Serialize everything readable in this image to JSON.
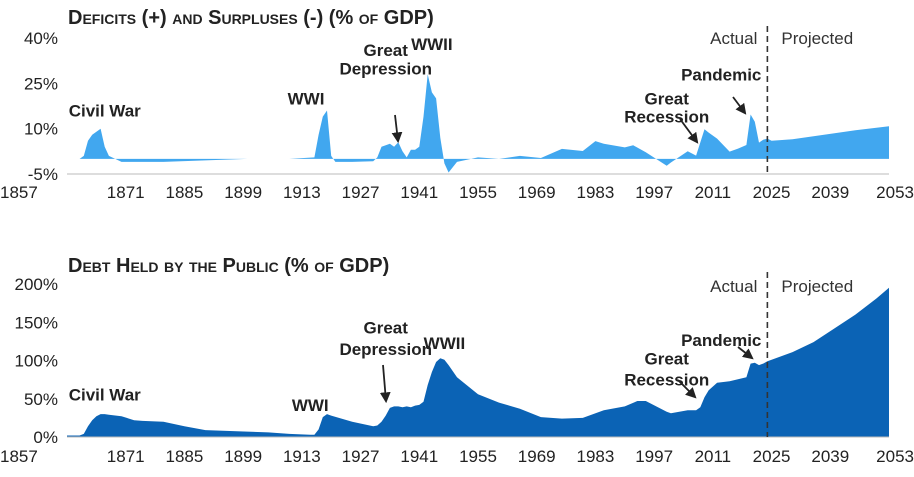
{
  "chart_data": [
    {
      "type": "area",
      "title": "Deficits (+) and Surpluses (-) (% of GDP)",
      "x_ticks": [
        1857,
        1871,
        1885,
        1899,
        1913,
        1927,
        1941,
        1955,
        1969,
        1983,
        1997,
        2011,
        2025,
        2039,
        2053
      ],
      "y_ticks": [
        "40%",
        "25%",
        "10%",
        "-5%"
      ],
      "y_tick_values": [
        40,
        25,
        10,
        -5
      ],
      "ylim": [
        -5,
        40
      ],
      "xlim": [
        1857,
        2053
      ],
      "color": "#41a7ef",
      "divider_year": 2024,
      "period_labels": {
        "actual": "Actual",
        "projected": "Projected"
      },
      "annotations": [
        {
          "text": "Civil War",
          "x": 1866,
          "y": 14
        },
        {
          "text": "WWI",
          "x": 1914,
          "y": 18
        },
        {
          "text": "Great",
          "x": 1933,
          "y": 34
        },
        {
          "text": "Depression",
          "x": 1933,
          "y": 28
        },
        {
          "text": "WWII",
          "x": 1944,
          "y": 36
        },
        {
          "text": "Great",
          "x": 2000,
          "y": 18
        },
        {
          "text": "Recession",
          "x": 2000,
          "y": 12
        },
        {
          "text": "Pandemic",
          "x": 2013,
          "y": 26
        }
      ],
      "x": [
        1857,
        1860,
        1861,
        1862,
        1863,
        1864,
        1865,
        1866,
        1867,
        1870,
        1880,
        1890,
        1900,
        1910,
        1916,
        1917,
        1918,
        1919,
        1920,
        1921,
        1925,
        1930,
        1931,
        1932,
        1933,
        1934,
        1935,
        1936,
        1937,
        1938,
        1939,
        1940,
        1941,
        1942,
        1943,
        1944,
        1945,
        1946,
        1947,
        1948,
        1950,
        1955,
        1960,
        1965,
        1970,
        1975,
        1980,
        1983,
        1985,
        1990,
        1992,
        1995,
        2000,
        2001,
        2005,
        2007,
        2009,
        2010,
        2012,
        2015,
        2017,
        2019,
        2020,
        2021,
        2022,
        2023,
        2024,
        2025,
        2030,
        2035,
        2040,
        2045,
        2050,
        2053
      ],
      "values": [
        0,
        0,
        1,
        6,
        8,
        9,
        10,
        4,
        1,
        -1,
        -1,
        -0.5,
        0,
        0,
        0.5,
        8,
        14,
        16,
        1,
        -1,
        -1,
        -0.8,
        0.5,
        4,
        4.5,
        5,
        4,
        5.5,
        2.5,
        0.5,
        3,
        3,
        4,
        14,
        28,
        22,
        20,
        7,
        -1.5,
        -4.5,
        -1,
        0.5,
        0,
        1,
        0.3,
        3.3,
        2.6,
        5.9,
        5,
        3.8,
        4.5,
        2.2,
        -2.3,
        -1.2,
        2.5,
        1.1,
        9.8,
        8.7,
        6.7,
        2.4,
        3.4,
        4.6,
        14.7,
        12.3,
        5.4,
        6.3,
        6.7,
        6,
        6.5,
        7.5,
        8.5,
        9.5,
        10.3,
        10.8
      ]
    },
    {
      "type": "area",
      "title": "Debt Held by the Public (% of GDP)",
      "x_ticks": [
        1857,
        1871,
        1885,
        1899,
        1913,
        1927,
        1941,
        1955,
        1969,
        1983,
        1997,
        2011,
        2025,
        2039,
        2053
      ],
      "y_ticks": [
        "200%",
        "150%",
        "100%",
        "50%",
        "0%"
      ],
      "y_tick_values": [
        200,
        150,
        100,
        50,
        0
      ],
      "ylim": [
        0,
        200
      ],
      "xlim": [
        1857,
        2053
      ],
      "color": "#0b63b5",
      "divider_year": 2024,
      "period_labels": {
        "actual": "Actual",
        "projected": "Projected"
      },
      "annotations": [
        {
          "text": "Civil War",
          "x": 1866,
          "y": 48
        },
        {
          "text": "WWI",
          "x": 1915,
          "y": 34
        },
        {
          "text": "Great",
          "x": 1933,
          "y": 135
        },
        {
          "text": "Depression",
          "x": 1933,
          "y": 107
        },
        {
          "text": "WWII",
          "x": 1947,
          "y": 115
        },
        {
          "text": "Great",
          "x": 2000,
          "y": 95
        },
        {
          "text": "Recession",
          "x": 2000,
          "y": 67
        },
        {
          "text": "Pandemic",
          "x": 2013,
          "y": 119
        }
      ],
      "x": [
        1857,
        1860,
        1861,
        1862,
        1863,
        1864,
        1865,
        1866,
        1867,
        1870,
        1873,
        1875,
        1880,
        1885,
        1890,
        1895,
        1900,
        1905,
        1910,
        1915,
        1916,
        1917,
        1918,
        1919,
        1920,
        1925,
        1930,
        1931,
        1932,
        1933,
        1934,
        1935,
        1936,
        1937,
        1938,
        1939,
        1940,
        1941,
        1942,
        1943,
        1944,
        1945,
        1946,
        1947,
        1948,
        1950,
        1955,
        1960,
        1965,
        1970,
        1975,
        1980,
        1985,
        1990,
        1993,
        1995,
        2000,
        2001,
        2005,
        2007,
        2008,
        2009,
        2010,
        2012,
        2015,
        2019,
        2020,
        2021,
        2022,
        2023,
        2024,
        2025,
        2030,
        2035,
        2040,
        2045,
        2050,
        2053
      ],
      "values": [
        2,
        2,
        4,
        14,
        22,
        27,
        30,
        30,
        29,
        27,
        22,
        21,
        20,
        14,
        9,
        8,
        7,
        6,
        4,
        3,
        3,
        10,
        26,
        30,
        28,
        20,
        14,
        15,
        20,
        28,
        38,
        40,
        40,
        39,
        40,
        39,
        41,
        42,
        46,
        68,
        85,
        98,
        103,
        101,
        94,
        78,
        56,
        45,
        37,
        26,
        24,
        25,
        35,
        40,
        47,
        47,
        33,
        31,
        35,
        35,
        39,
        52,
        61,
        71,
        73,
        78,
        96,
        97,
        94,
        96,
        99,
        101,
        111,
        124,
        142,
        160,
        181,
        195
      ]
    }
  ]
}
